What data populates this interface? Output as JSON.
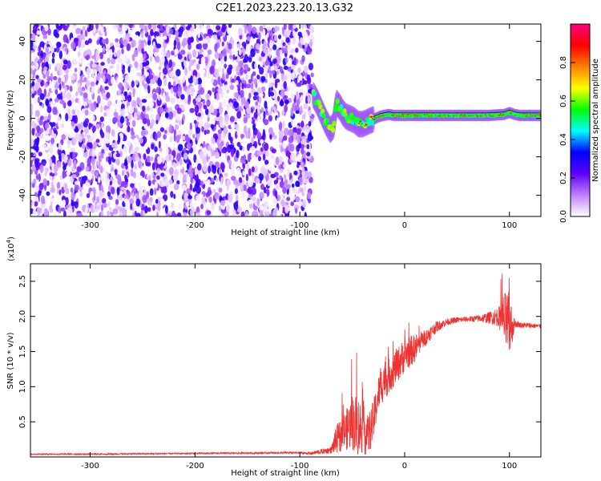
{
  "title": "C2E1.2023.223.20.13.G32",
  "chart_data": [
    {
      "type": "heatmap",
      "xlabel": "Height of straight line (km)",
      "ylabel": "Frequency (Hz)",
      "xlim": [
        -357,
        130
      ],
      "ylim": [
        -51,
        49
      ],
      "x_ticks": [
        "-300",
        "-200",
        "-100",
        "0",
        "100"
      ],
      "y_ticks": [
        "-40",
        "-20",
        "0",
        "20",
        "40"
      ],
      "x_tick_values": [
        -300,
        -200,
        -100,
        0,
        100
      ],
      "y_tick_values": [
        -40,
        -20,
        0,
        20,
        40
      ],
      "noise_region_x": [
        -357,
        -88
      ],
      "signal_track": {
        "x": [
          -87,
          -83,
          -79,
          -75,
          -71,
          -68,
          -65,
          -62,
          -59,
          -56,
          -52,
          -48,
          -44,
          -40,
          -36,
          -32,
          -28,
          -24,
          -20,
          -15,
          -10,
          -5,
          0,
          20,
          40,
          60,
          80,
          95,
          100,
          105,
          110,
          120,
          130
        ],
        "freq": [
          12,
          8,
          3,
          -2,
          -6,
          -4,
          8,
          6,
          3,
          1,
          0,
          -1,
          -3,
          -3,
          -2,
          -1,
          0,
          1,
          1.5,
          2,
          1.5,
          1.5,
          1.5,
          1.5,
          1.5,
          1.5,
          1.5,
          2,
          3,
          2,
          1.5,
          1.5,
          1.5
        ]
      },
      "colorbar": {
        "label": "Normalized spectral amplitude",
        "ticks": [
          "0.0",
          "0.2",
          "0.4",
          "0.6",
          "0.8"
        ],
        "tick_values": [
          0.0,
          0.2,
          0.4,
          0.6,
          0.8
        ],
        "range": [
          0,
          1
        ],
        "colors": [
          "#ffffff",
          "#c080ff",
          "#6000ff",
          "#0000ff",
          "#00ffff",
          "#00ff00",
          "#ffff00",
          "#ff8000",
          "#ff0000",
          "#ff0080"
        ]
      }
    },
    {
      "type": "line",
      "xlabel": "Height of straight line (km)",
      "ylabel": "SNR (10 * v/v)",
      "scale_label": "(x10",
      "scale_exp": "4",
      "scale_close": ")",
      "xlim": [
        -357,
        130
      ],
      "ylim": [
        0,
        2.75
      ],
      "x_ticks": [
        "-300",
        "-200",
        "-100",
        "0",
        "100"
      ],
      "y_ticks": [
        "0.5",
        "1.0",
        "1.5",
        "2.0",
        "2.5"
      ],
      "x_tick_values": [
        -300,
        -200,
        -100,
        0,
        100
      ],
      "y_tick_values": [
        0.5,
        1.0,
        1.5,
        2.0,
        2.5
      ],
      "color": "#ee3333",
      "series_envelope": {
        "x": [
          -357,
          -300,
          -200,
          -100,
          -90,
          -70,
          -65,
          -55,
          -50,
          -45,
          -40,
          -35,
          -30,
          -25,
          -20,
          -15,
          -10,
          -5,
          0,
          10,
          20,
          30,
          40,
          50,
          60,
          70,
          80,
          90,
          95,
          100,
          105,
          110,
          120,
          130
        ],
        "y_mean": [
          0.04,
          0.04,
          0.05,
          0.06,
          0.05,
          0.1,
          0.25,
          0.4,
          0.5,
          0.45,
          0.4,
          0.3,
          0.5,
          0.9,
          1.1,
          1.15,
          1.25,
          1.35,
          1.45,
          1.55,
          1.7,
          1.85,
          1.92,
          1.95,
          1.96,
          1.97,
          1.98,
          2.0,
          1.95,
          1.85,
          1.9,
          1.88,
          1.87,
          1.86
        ],
        "y_spread": [
          0.01,
          0.01,
          0.01,
          0.015,
          0.02,
          0.05,
          0.2,
          0.3,
          0.4,
          0.45,
          0.35,
          0.3,
          0.3,
          0.25,
          0.3,
          0.25,
          0.25,
          0.25,
          0.25,
          0.2,
          0.12,
          0.08,
          0.05,
          0.04,
          0.04,
          0.05,
          0.08,
          0.15,
          0.4,
          0.5,
          0.06,
          0.04,
          0.04,
          0.03
        ]
      }
    }
  ]
}
